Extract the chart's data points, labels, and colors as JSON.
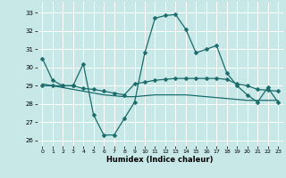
{
  "xlabel": "Humidex (Indice chaleur)",
  "bg_color": "#c8e8e8",
  "line_color": "#1a6b6b",
  "grid_color": "#ffffff",
  "xlim": [
    -0.5,
    23.5
  ],
  "ylim": [
    25.7,
    33.6
  ],
  "yticks": [
    26,
    27,
    28,
    29,
    30,
    31,
    32,
    33
  ],
  "xticks": [
    0,
    1,
    2,
    3,
    4,
    5,
    6,
    7,
    8,
    9,
    10,
    11,
    12,
    13,
    14,
    15,
    16,
    17,
    18,
    19,
    20,
    21,
    22,
    23
  ],
  "line1_x": [
    0,
    1,
    2,
    3,
    4,
    5,
    6,
    7,
    8,
    9,
    10,
    11,
    12,
    13,
    14,
    15,
    16,
    17,
    18,
    19,
    20,
    21,
    22,
    23
  ],
  "line1_y": [
    30.5,
    29.3,
    29.0,
    29.0,
    30.2,
    27.4,
    26.3,
    26.3,
    27.2,
    28.1,
    30.8,
    32.7,
    32.85,
    32.9,
    32.1,
    30.8,
    31.0,
    31.2,
    29.7,
    29.0,
    28.5,
    28.1,
    28.9,
    28.1
  ],
  "line2_x": [
    0,
    1,
    2,
    3,
    4,
    5,
    6,
    7,
    8,
    9,
    10,
    11,
    12,
    13,
    14,
    15,
    16,
    17,
    18,
    19,
    20,
    21,
    22,
    23
  ],
  "line2_y": [
    29.0,
    29.0,
    29.0,
    29.0,
    28.85,
    28.8,
    28.7,
    28.6,
    28.5,
    29.1,
    29.2,
    29.3,
    29.35,
    29.4,
    29.4,
    29.4,
    29.4,
    29.4,
    29.35,
    29.1,
    29.0,
    28.8,
    28.75,
    28.7
  ],
  "line3_x": [
    0,
    1,
    2,
    3,
    4,
    5,
    6,
    7,
    8,
    9,
    10,
    11,
    12,
    13,
    14,
    15,
    16,
    17,
    18,
    19,
    20,
    21,
    22,
    23
  ],
  "line3_y": [
    29.1,
    29.0,
    28.9,
    28.8,
    28.7,
    28.6,
    28.5,
    28.45,
    28.4,
    28.4,
    28.45,
    28.5,
    28.5,
    28.5,
    28.5,
    28.45,
    28.4,
    28.35,
    28.3,
    28.25,
    28.2,
    28.2,
    28.2,
    28.2
  ],
  "markersize": 2.5
}
